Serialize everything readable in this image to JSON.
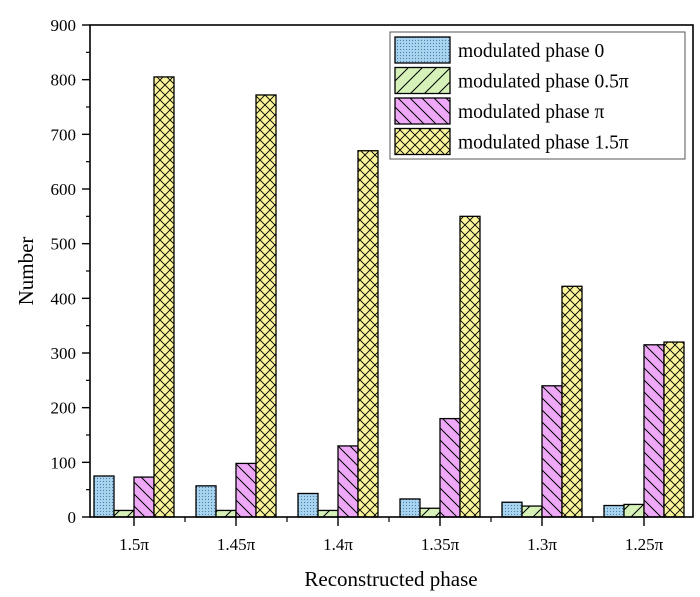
{
  "chart_data": {
    "type": "bar",
    "title": "",
    "xlabel": "Reconstructed phase",
    "ylabel": "Number",
    "ylim": [
      0,
      900
    ],
    "yticks": [
      0,
      100,
      200,
      300,
      400,
      500,
      600,
      700,
      800,
      900
    ],
    "yticks_minor_step": 50,
    "grid": false,
    "legend_position": "top-right",
    "categories": [
      "1.5π",
      "1.45π",
      "1.4π",
      "1.35π",
      "1.3π",
      "1.25π"
    ],
    "series": [
      {
        "name": "modulated phase 0",
        "color": "#a9d4f0",
        "pattern": "dots",
        "values": [
          75,
          57,
          43,
          33,
          27,
          21
        ]
      },
      {
        "name": "modulated phase 0.5π",
        "color": "#d6f2b8",
        "pattern": "forward-diagonal",
        "values": [
          12,
          12,
          12,
          16,
          20,
          23
        ]
      },
      {
        "name": "modulated phase π",
        "color": "#eea8f7",
        "pattern": "back-diagonal",
        "values": [
          73,
          98,
          130,
          180,
          240,
          315
        ]
      },
      {
        "name": "modulated phase 1.5π",
        "color": "#fbf49a",
        "pattern": "crosshatch",
        "values": [
          805,
          772,
          670,
          550,
          422,
          320
        ]
      }
    ]
  }
}
